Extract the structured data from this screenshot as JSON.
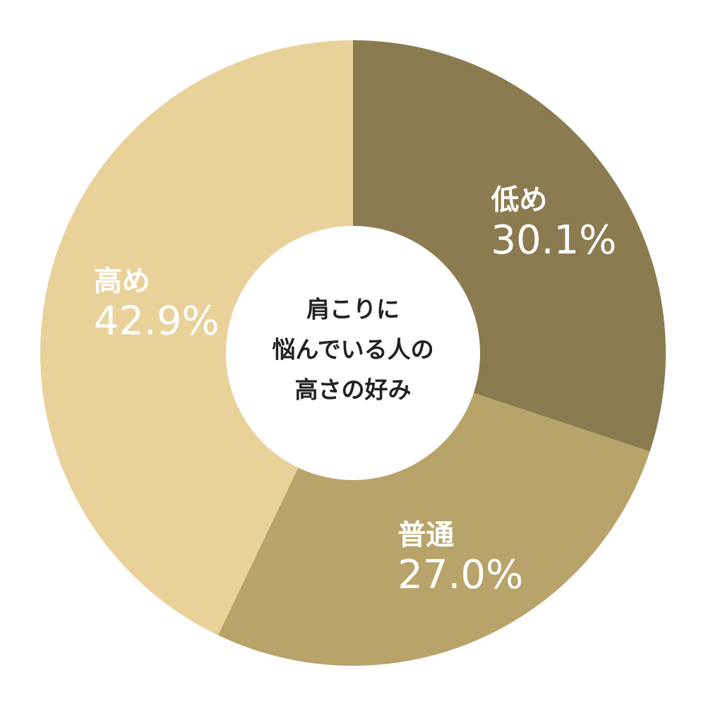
{
  "chart_data": {
    "type": "donut",
    "title": [
      "肩こりに",
      "悩んでいる人の",
      "高さの好み"
    ],
    "categories": [
      "低め",
      "普通",
      "高め"
    ],
    "values": [
      30.1,
      27.0,
      42.9
    ],
    "value_labels": [
      "30.1%",
      "27.0%",
      "42.9%"
    ],
    "colors": [
      "#8b7b50",
      "#b8a36a",
      "#e8d29a"
    ]
  }
}
